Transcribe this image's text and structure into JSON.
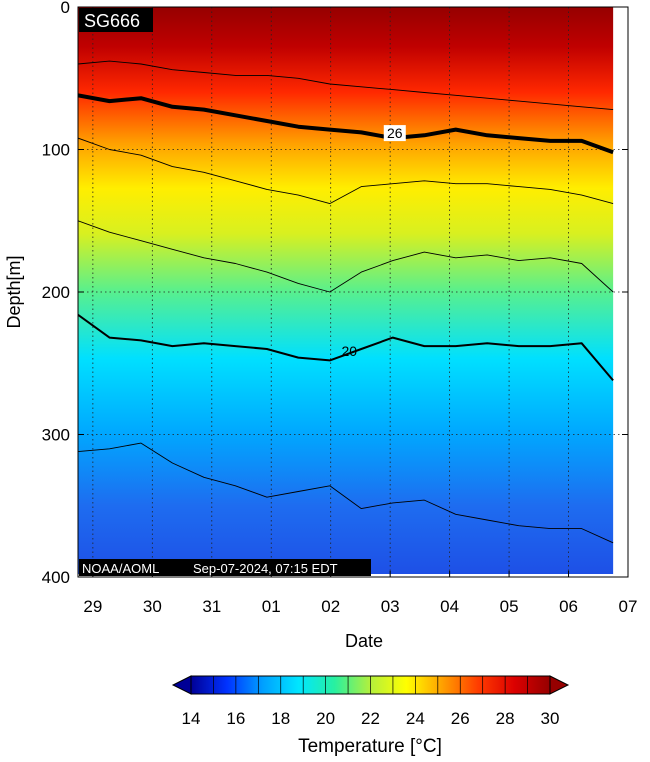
{
  "chart_data": {
    "type": "heatmap",
    "glider_id": "SG666",
    "footer": "NOAA/AOML",
    "timestamp": "Sep-07-2024, 07:15 EDT",
    "xlabel": "Date",
    "ylabel": "Depth[m]",
    "x_ticks": [
      "29",
      "30",
      "31",
      "01",
      "02",
      "03",
      "04",
      "05",
      "06",
      "07"
    ],
    "x_range": [
      "2024-08-28T18:00",
      "2024-09-07T00:00"
    ],
    "data_end": "2024-09-06T18:00",
    "y_ticks": [
      0,
      100,
      200,
      300,
      400
    ],
    "ylim": [
      0,
      400
    ],
    "y_inverted": true,
    "grid": true,
    "colorbar": {
      "label": "Temperature [°C]",
      "range": [
        14,
        30
      ],
      "ticks": [
        14,
        16,
        18,
        20,
        22,
        24,
        26,
        28,
        30
      ],
      "colors": [
        "#000096",
        "#0032ff",
        "#00a0ff",
        "#00e6ff",
        "#28f0a0",
        "#b4f03c",
        "#ffff00",
        "#ffa000",
        "#ff3c00",
        "#dc0000",
        "#960000"
      ]
    },
    "isotherms": [
      {
        "temp": 28,
        "bold": false,
        "label": "",
        "depth": [
          40,
          38,
          40,
          44,
          46,
          48,
          48,
          50,
          54,
          56,
          58,
          60,
          62,
          64,
          66,
          68,
          70,
          72
        ]
      },
      {
        "temp": 26,
        "bold": true,
        "label": "26",
        "depth": [
          62,
          66,
          64,
          70,
          72,
          76,
          80,
          84,
          86,
          88,
          92,
          90,
          86,
          90,
          92,
          94,
          94,
          102
        ]
      },
      {
        "temp": 24,
        "bold": false,
        "label": "",
        "depth": [
          92,
          100,
          104,
          112,
          116,
          122,
          128,
          132,
          138,
          126,
          124,
          122,
          124,
          124,
          126,
          128,
          132,
          138
        ]
      },
      {
        "temp": 22,
        "bold": false,
        "label": "",
        "depth": [
          150,
          158,
          164,
          170,
          176,
          180,
          186,
          194,
          200,
          186,
          178,
          172,
          176,
          174,
          178,
          176,
          180,
          200
        ]
      },
      {
        "temp": 20,
        "bold": true,
        "label": "20",
        "depth": [
          216,
          232,
          234,
          238,
          236,
          238,
          240,
          246,
          248,
          240,
          232,
          238,
          238,
          236,
          238,
          238,
          236,
          262
        ]
      },
      {
        "temp": 18,
        "bold": false,
        "label": "",
        "depth": [
          312,
          310,
          306,
          320,
          330,
          336,
          344,
          340,
          336,
          352,
          348,
          346,
          356,
          360,
          364,
          366,
          366,
          376
        ]
      }
    ]
  }
}
